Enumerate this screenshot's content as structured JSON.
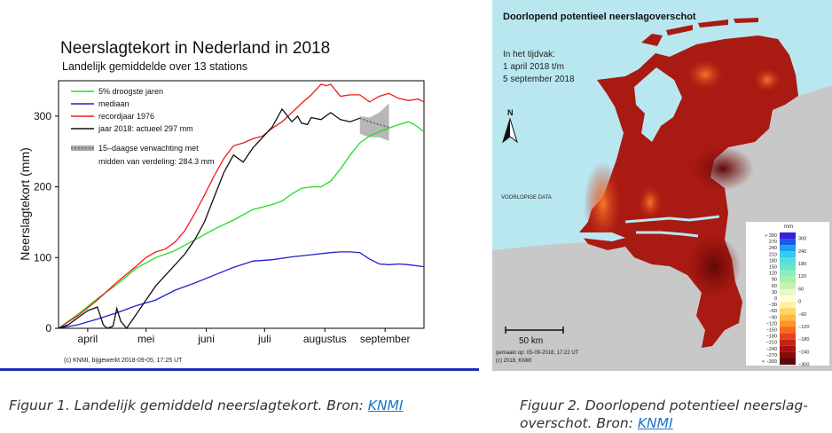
{
  "figure1": {
    "title": "Neerslagtekort in Nederland in 2018",
    "subtitle": "Landelijk gemiddelde over 13 stations",
    "footer": "(c) KNMI, bijgewerkt 2018-09-05, 17:25 UT",
    "legend_note": "midden van verdeling: 284.3 mm"
  },
  "chart_data": {
    "type": "line",
    "title": "Neerslagtekort in Nederland in 2018",
    "subtitle": "Landelijk gemiddelde over 13 stations",
    "ylabel": "Neerslagtekort (mm)",
    "xlabel": "",
    "ylim": [
      0,
      350
    ],
    "yticks": [
      0,
      100,
      200,
      300
    ],
    "x_unit": "day index from 1 april",
    "xlim": [
      0,
      188
    ],
    "months": [
      {
        "label": "april",
        "x": 15
      },
      {
        "label": "mei",
        "x": 45
      },
      {
        "label": "juni",
        "x": 76
      },
      {
        "label": "juli",
        "x": 106
      },
      {
        "label": "augustus",
        "x": 137
      },
      {
        "label": "september",
        "x": 168
      }
    ],
    "series": [
      {
        "name": "5% droogste jaren",
        "color": "#22dd22",
        "x": [
          0,
          10,
          20,
          30,
          40,
          50,
          60,
          70,
          80,
          90,
          100,
          110,
          115,
          120,
          125,
          130,
          135,
          140,
          145,
          150,
          155,
          160,
          165,
          170,
          175,
          180,
          183,
          188
        ],
        "y": [
          0,
          20,
          42,
          62,
          85,
          100,
          110,
          125,
          140,
          153,
          168,
          175,
          180,
          190,
          198,
          200,
          200,
          208,
          225,
          245,
          262,
          272,
          278,
          283,
          288,
          292,
          288,
          278
        ]
      },
      {
        "name": "mediaan",
        "color": "#1f1fd0",
        "x": [
          0,
          10,
          20,
          30,
          40,
          50,
          60,
          70,
          80,
          90,
          100,
          110,
          120,
          130,
          140,
          145,
          150,
          155,
          160,
          165,
          170,
          175,
          180,
          188
        ],
        "y": [
          0,
          5,
          13,
          22,
          32,
          40,
          54,
          64,
          75,
          86,
          95,
          97,
          101,
          104,
          107,
          108,
          108,
          107,
          98,
          91,
          90,
          91,
          90,
          87
        ]
      },
      {
        "name": "recordjaar 1976",
        "color": "#ee1a1a",
        "x": [
          0,
          10,
          20,
          30,
          40,
          45,
          50,
          55,
          60,
          65,
          70,
          75,
          80,
          85,
          90,
          95,
          100,
          105,
          110,
          115,
          120,
          125,
          130,
          135,
          138,
          140,
          145,
          150,
          155,
          160,
          165,
          170,
          175,
          180,
          185,
          188
        ],
        "y": [
          0,
          18,
          40,
          65,
          88,
          100,
          108,
          112,
          122,
          138,
          162,
          188,
          215,
          240,
          258,
          262,
          268,
          272,
          283,
          292,
          305,
          318,
          330,
          345,
          343,
          345,
          328,
          330,
          330,
          320,
          328,
          332,
          325,
          322,
          324,
          320
        ]
      },
      {
        "name": "jaar 2018: actueel 297 mm",
        "color": "#111111",
        "x": [
          0,
          5,
          10,
          15,
          20,
          23,
          25,
          28,
          30,
          32,
          35,
          40,
          45,
          50,
          55,
          60,
          65,
          70,
          75,
          80,
          85,
          90,
          95,
          100,
          105,
          110,
          115,
          120,
          123,
          125,
          128,
          130,
          135,
          140,
          145,
          150,
          155
        ],
        "y": [
          0,
          5,
          15,
          25,
          30,
          5,
          0,
          3,
          28,
          10,
          0,
          20,
          40,
          60,
          75,
          90,
          105,
          125,
          150,
          185,
          220,
          245,
          235,
          255,
          270,
          285,
          310,
          292,
          300,
          290,
          288,
          298,
          295,
          305,
          295,
          292,
          297
        ]
      },
      {
        "name": "15-daagse verwachting met midden van verdeling: 284.3 mm",
        "color": "#555555",
        "dashed": true,
        "x": [
          155,
          160,
          165,
          170
        ],
        "y": [
          297,
          292,
          288,
          284.3
        ]
      }
    ],
    "forecast_band": {
      "x": [
        155,
        160,
        165,
        170
      ],
      "low": [
        275,
        270,
        270,
        265
      ],
      "high": [
        300,
        298,
        305,
        318
      ]
    }
  },
  "figure2": {
    "title": "Doorlopend potentieel neerslagoverschot",
    "period_label": "In het tijdvak:",
    "period_from": "1 april 2018 t/m",
    "period_to": "5 september 2018",
    "north": "N",
    "provisional": "VOORLOPIGE DATA",
    "scale": "50 km",
    "footer_made": "gemaakt op: 05-09-2018, 17:22 UT",
    "footer_copy": "(c) 2018, KNMI",
    "legend_unit": "mm",
    "legend_left": [
      "> 300",
      "270",
      "240",
      "210",
      "180",
      "150",
      "120",
      "90",
      "60",
      "30",
      "0",
      "−30",
      "−60",
      "−90",
      "−120",
      "−150",
      "−180",
      "−210",
      "−240",
      "−270",
      "< −300"
    ],
    "legend_right": [
      "300",
      "240",
      "180",
      "120",
      "60",
      "0",
      "−60",
      "−120",
      "−180",
      "−240",
      "−300"
    ],
    "legend_colors": [
      "#3a1ee0",
      "#1a59e6",
      "#1e9cf0",
      "#33ccee",
      "#55dde0",
      "#66e5cc",
      "#88eebb",
      "#a8f0a8",
      "#caf0b0",
      "#e8f8cc",
      "#ffffd8",
      "#fff0a0",
      "#ffd760",
      "#ffb840",
      "#ff9228",
      "#f46a1e",
      "#e4441a",
      "#c82016",
      "#a81010",
      "#850c0c",
      "#5e0808"
    ]
  },
  "captions": {
    "fig1_text": "Figuur 1. Landelijk gemiddeld neerslagtekort. Bron: ",
    "fig1_link": "KNMI",
    "fig2_text": "Figuur 2. Doorlopend potentieel neerslag-overschot. Bron: ",
    "fig2_link": "KNMI"
  }
}
